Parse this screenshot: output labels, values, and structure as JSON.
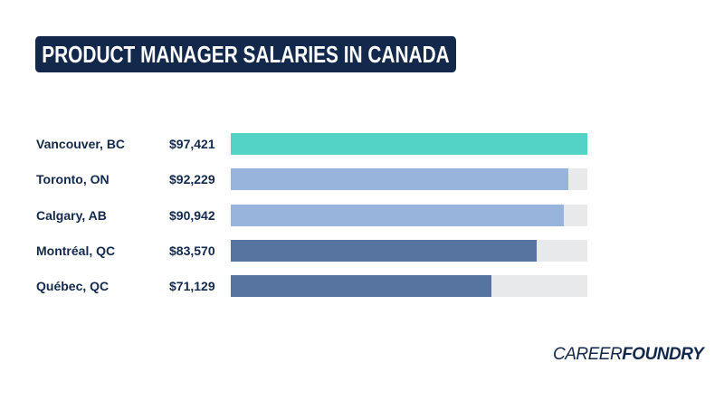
{
  "chart_data": {
    "type": "bar",
    "orientation": "horizontal",
    "title": "PRODUCT MANAGER SALARIES IN CANADA",
    "categories": [
      "Vancouver, BC",
      "Toronto, ON",
      "Calgary, AB",
      "Montréal, QC",
      "Québec, QC"
    ],
    "values": [
      97421,
      92229,
      90942,
      83570,
      71129
    ],
    "value_labels": [
      "$97,421",
      "$92,229",
      "$90,942",
      "$83,570",
      "$71,129"
    ],
    "colors": [
      "#52d3c6",
      "#98b3dc",
      "#98b3dc",
      "#5773a0",
      "#5773a0"
    ],
    "track_color": "#e8e9ea",
    "xlim": [
      0,
      97421
    ],
    "grid": false
  },
  "brand": {
    "logo_light": "CAREER",
    "logo_bold": "FOUNDRY",
    "navy": "#13294b"
  }
}
